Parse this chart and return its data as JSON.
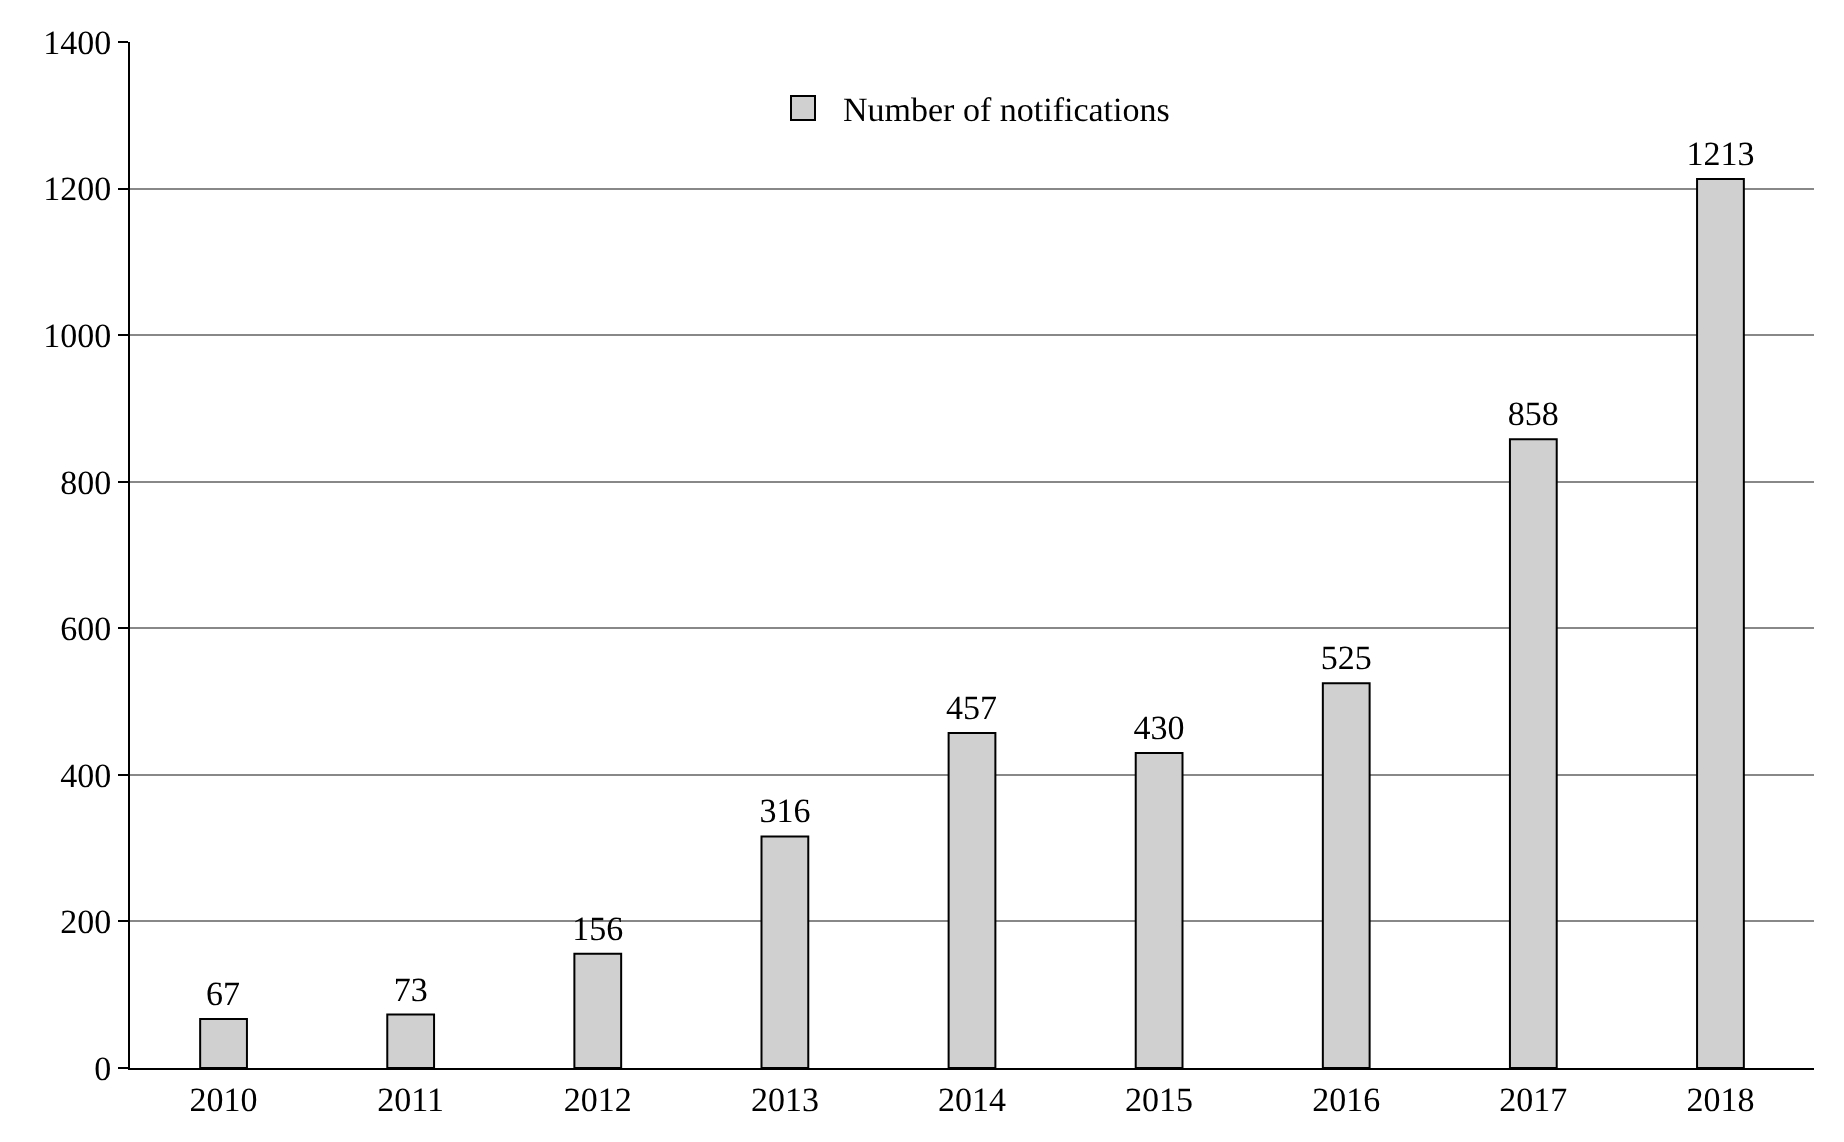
{
  "chart_data": {
    "type": "bar",
    "categories": [
      "2010",
      "2011",
      "2012",
      "2013",
      "2014",
      "2015",
      "2016",
      "2017",
      "2018"
    ],
    "series": [
      {
        "name": "Number of notifications",
        "color": "#d0d0d0",
        "values": [
          67,
          73,
          156,
          316,
          457,
          430,
          525,
          858,
          1213
        ]
      }
    ],
    "ylim": [
      0,
      1400
    ],
    "yticks": [
      0,
      200,
      400,
      600,
      800,
      1000,
      1200,
      1400
    ],
    "grid": "y",
    "legend": "top",
    "data_labels": true
  }
}
